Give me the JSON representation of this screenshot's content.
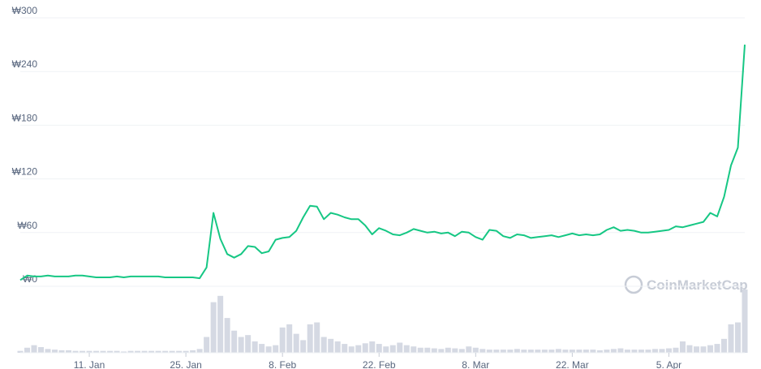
{
  "chart_data": {
    "type": "line",
    "watermark": "CoinMarketCap",
    "x": [
      1,
      2,
      3,
      4,
      5,
      6,
      7,
      8,
      9,
      10,
      11,
      12,
      13,
      14,
      15,
      16,
      17,
      18,
      19,
      20,
      21,
      22,
      23,
      24,
      25,
      26,
      27,
      28,
      29,
      30,
      31,
      32,
      33,
      34,
      35,
      36,
      37,
      38,
      39,
      40,
      41,
      42,
      43,
      44,
      45,
      46,
      47,
      48,
      49,
      50,
      51,
      52,
      53,
      54,
      55,
      56,
      57,
      58,
      59,
      60,
      61,
      62,
      63,
      64,
      65,
      66,
      67,
      68,
      69,
      70,
      71,
      72,
      73,
      74,
      75,
      76,
      77,
      78,
      79,
      80,
      81,
      82,
      83,
      84,
      85,
      86,
      87,
      88,
      89,
      90,
      91,
      92,
      93,
      94,
      95,
      96,
      97,
      98,
      99,
      100,
      101,
      102,
      103,
      104,
      105,
      106
    ],
    "values": [
      7,
      12,
      11,
      11,
      12,
      11,
      11,
      11,
      12,
      12,
      11,
      10,
      10,
      10,
      11,
      10,
      11,
      11,
      11,
      11,
      11,
      10,
      10,
      10,
      10,
      10,
      9,
      21,
      82,
      53,
      36,
      32,
      36,
      45,
      44,
      37,
      39,
      52,
      54,
      55,
      62,
      77,
      90,
      89,
      75,
      82,
      80,
      77,
      75,
      75,
      68,
      58,
      65,
      62,
      58,
      57,
      60,
      64,
      62,
      60,
      61,
      59,
      60,
      56,
      61,
      60,
      55,
      52,
      63,
      62,
      56,
      54,
      58,
      57,
      54,
      55,
      56,
      57,
      55,
      57,
      59,
      57,
      58,
      57,
      58,
      63,
      66,
      62,
      63,
      62,
      60,
      60,
      61,
      62,
      63,
      67,
      66,
      68,
      70,
      72,
      82,
      78,
      100,
      135,
      155,
      270
    ],
    "volume": [
      3,
      8,
      12,
      9,
      6,
      5,
      4,
      4,
      3,
      3,
      3,
      3,
      3,
      3,
      3,
      2,
      3,
      3,
      3,
      3,
      3,
      3,
      3,
      3,
      3,
      4,
      6,
      25,
      80,
      90,
      55,
      35,
      25,
      28,
      18,
      14,
      10,
      12,
      40,
      45,
      30,
      20,
      45,
      48,
      25,
      22,
      18,
      14,
      10,
      12,
      15,
      18,
      14,
      10,
      12,
      16,
      12,
      10,
      8,
      8,
      7,
      6,
      8,
      7,
      6,
      10,
      8,
      6,
      5,
      5,
      5,
      5,
      6,
      5,
      5,
      5,
      5,
      5,
      6,
      5,
      5,
      5,
      5,
      5,
      4,
      5,
      6,
      7,
      5,
      5,
      5,
      5,
      6,
      6,
      7,
      8,
      18,
      12,
      10,
      10,
      12,
      14,
      22,
      45,
      48,
      100
    ],
    "color": "#16c784",
    "volume_color": "#d5d9e3",
    "xlim": [
      1,
      106
    ],
    "xticks": [
      {
        "value": 11,
        "label": "11. Jan"
      },
      {
        "value": 25,
        "label": "25. Jan"
      },
      {
        "value": 39,
        "label": "8. Feb"
      },
      {
        "value": 53,
        "label": "22. Feb"
      },
      {
        "value": 67,
        "label": "8. Mar"
      },
      {
        "value": 81,
        "label": "22. Mar"
      },
      {
        "value": 95,
        "label": "5. Apr"
      }
    ],
    "ylim": [
      0,
      300
    ],
    "yticks": [
      {
        "value": 0,
        "label": "₩0"
      },
      {
        "value": 60,
        "label": "₩60"
      },
      {
        "value": 120,
        "label": "₩120"
      },
      {
        "value": 180,
        "label": "₩180"
      },
      {
        "value": 240,
        "label": "₩240"
      },
      {
        "value": 300,
        "label": "₩300"
      }
    ],
    "grid": true
  }
}
